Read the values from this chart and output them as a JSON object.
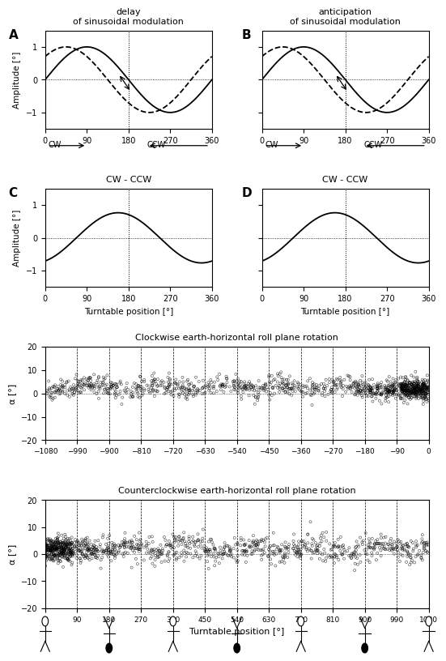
{
  "fig_width": 5.51,
  "fig_height": 8.49,
  "panel_A_title": "delay\nof sinusoidal modulation",
  "panel_B_title": "anticipation\nof sinusoidal modulation",
  "panel_C_title": "CW - CCW",
  "panel_D_title": "CW - CCW",
  "panel_E_title": "Clockwise earth-horizontal roll plane rotation",
  "panel_F_title": "Counterclockwise earth-horizontal roll plane rotation",
  "xlabel_turntable": "Turntable position [°]",
  "ylabel_amplitude": "Amplitude [°]",
  "ylabel_alpha": "α [°]",
  "sinusoid_xticks": [
    0,
    90,
    180,
    270,
    360
  ],
  "sinusoid_yticks": [
    -1,
    0,
    1
  ],
  "sinusoid_ylim": [
    -1.5,
    1.5
  ],
  "scatter_ylim": [
    -20,
    20
  ],
  "scatter_yticks": [
    -20,
    -10,
    0,
    10,
    20
  ],
  "cw_xticks": [
    -1080,
    -990,
    -900,
    -810,
    -720,
    -630,
    -540,
    -450,
    -360,
    -270,
    -180,
    -90,
    0
  ],
  "ccw_xticks": [
    0,
    90,
    180,
    270,
    360,
    450,
    540,
    630,
    720,
    810,
    900,
    990,
    1080
  ],
  "cw_xlim": [
    -1080,
    0
  ],
  "ccw_xlim": [
    0,
    1080
  ],
  "phase_delay_deg": 45,
  "phase_anticipation_deg": 45,
  "bg_color": "#ffffff",
  "scatter_seed_cw": 42,
  "scatter_seed_ccw": 123,
  "n_scatter": 800
}
